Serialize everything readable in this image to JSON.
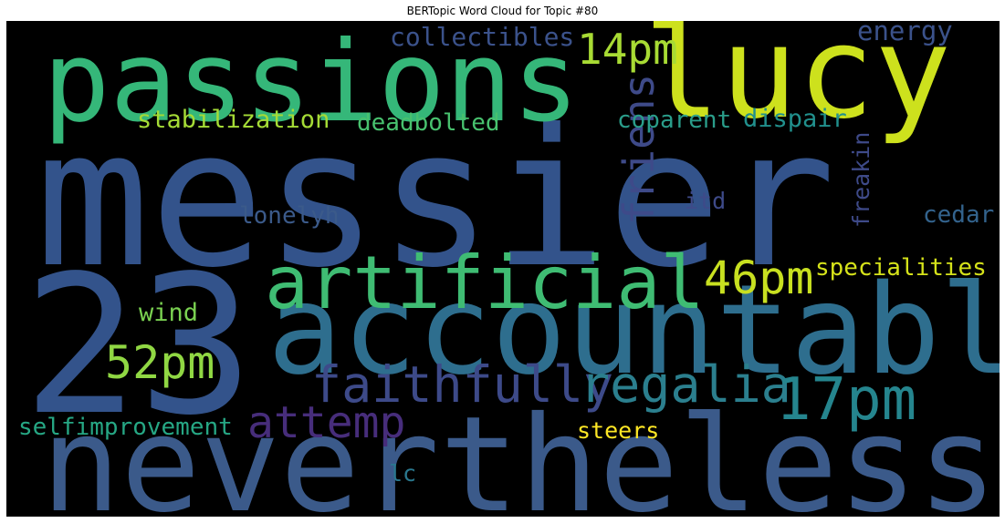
{
  "title": "BERTopic Word Cloud for Topic #80",
  "cloud": {
    "background": "#000000",
    "words": [
      {
        "text": "messier",
        "color": "#33538b"
      },
      {
        "text": "23",
        "color": "#33538b"
      },
      {
        "text": "nevertheless",
        "color": "#3b5a8a"
      },
      {
        "text": "accountable",
        "color": "#2e6e8e"
      },
      {
        "text": "passions",
        "color": "#35b779"
      },
      {
        "text": "lucy",
        "color": "#cde11d"
      },
      {
        "text": "artificial",
        "color": "#3fbc73"
      },
      {
        "text": "faithfully",
        "color": "#3d4a89"
      },
      {
        "text": "regalia",
        "color": "#2b7f8e"
      },
      {
        "text": "17pm",
        "color": "#25858e"
      },
      {
        "text": "52pm",
        "color": "#90d743"
      },
      {
        "text": "46pm",
        "color": "#c8e020"
      },
      {
        "text": "14pm",
        "color": "#a8db34"
      },
      {
        "text": "attemp",
        "color": "#472d7b"
      },
      {
        "text": "friens",
        "color": "#3e4a89"
      },
      {
        "text": "collectibles",
        "color": "#3b528b"
      },
      {
        "text": "stabilization",
        "color": "#a5db36"
      },
      {
        "text": "deadbolted",
        "color": "#48c16e"
      },
      {
        "text": "coparent",
        "color": "#2a9d8a"
      },
      {
        "text": "dispair",
        "color": "#21908d"
      },
      {
        "text": "energy",
        "color": "#3b528b"
      },
      {
        "text": "lonelyh",
        "color": "#3b5a8a"
      },
      {
        "text": "itd",
        "color": "#3e4a89"
      },
      {
        "text": "freakin",
        "color": "#3e4a89"
      },
      {
        "text": "cedar",
        "color": "#33638d"
      },
      {
        "text": "specialities",
        "color": "#d5e21a"
      },
      {
        "text": "wind",
        "color": "#7ad151"
      },
      {
        "text": "selfimprovement",
        "color": "#26a784"
      },
      {
        "text": "steers",
        "color": "#fde725"
      },
      {
        "text": "lc",
        "color": "#2a788e"
      }
    ]
  }
}
